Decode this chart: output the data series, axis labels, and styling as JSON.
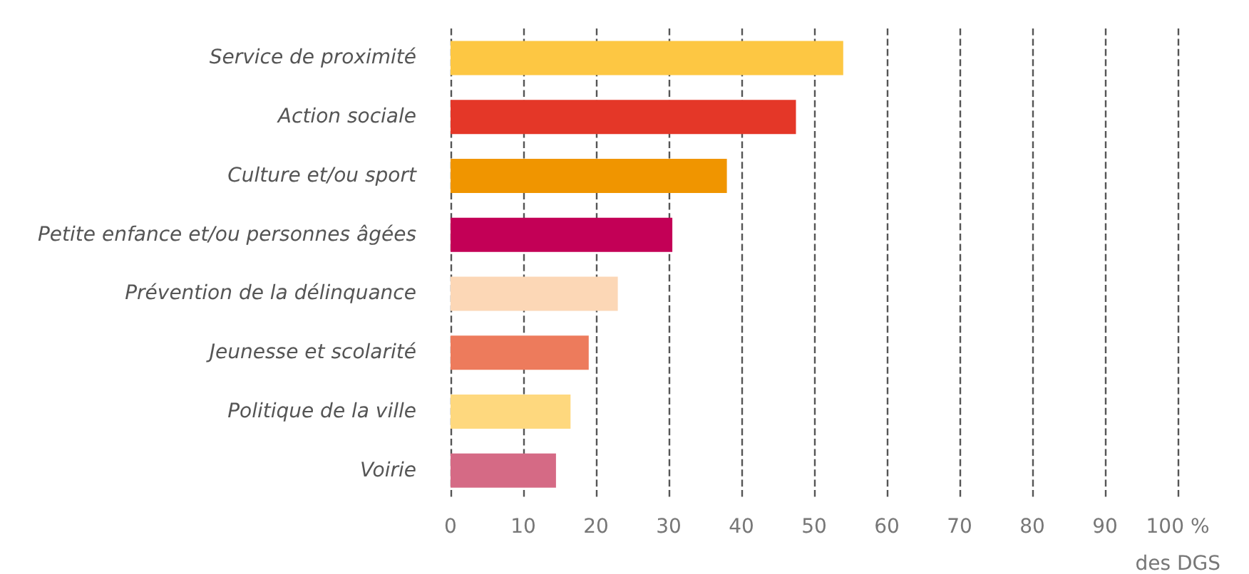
{
  "chart_data": {
    "type": "bar",
    "orientation": "horizontal",
    "categories": [
      "Service de proximité",
      "Action sociale",
      "Culture et/ou sport",
      "Petite enfance et/ou personnes âgées",
      "Prévention de la délinquance",
      "Jeunesse et scolarité",
      "Politique de la ville",
      "Voirie"
    ],
    "values": [
      54,
      47.5,
      38,
      30.5,
      23,
      19,
      16.5,
      14.5
    ],
    "colors": [
      "#fdc743",
      "#e43728",
      "#f09500",
      "#c30056",
      "#fcd7b6",
      "#ed7b5c",
      "#fed87e",
      "#d56a85"
    ],
    "xlabel": "des DGS",
    "xlim": [
      0,
      100
    ],
    "xticks": [
      0,
      10,
      20,
      30,
      40,
      50,
      60,
      70,
      80,
      90,
      {
        "value": 100,
        "label": "100 %"
      }
    ],
    "grid": "x",
    "line_style": "dashed"
  }
}
